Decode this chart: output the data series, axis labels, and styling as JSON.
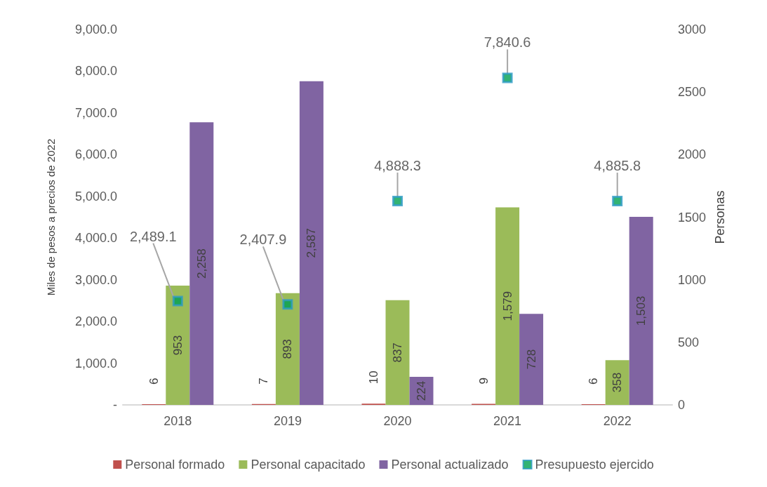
{
  "chart_data": {
    "type": "bar",
    "categories": [
      "2018",
      "2019",
      "2020",
      "2021",
      "2022"
    ],
    "ylabel": "Miles de pesos a precios de 2022",
    "y2label": "Personas",
    "ylim": [
      0,
      9000
    ],
    "yticks": [
      {
        "value": 0,
        "label": "-"
      },
      {
        "value": 1000,
        "label": "1,000.0"
      },
      {
        "value": 2000,
        "label": "2,000.0"
      },
      {
        "value": 3000,
        "label": "3,000.0"
      },
      {
        "value": 4000,
        "label": "4,000.0"
      },
      {
        "value": 5000,
        "label": "5,000.0"
      },
      {
        "value": 6000,
        "label": "6,000.0"
      },
      {
        "value": 7000,
        "label": "7,000.0"
      },
      {
        "value": 8000,
        "label": "8,000.0"
      },
      {
        "value": 9000,
        "label": "9,000.0"
      }
    ],
    "y2lim": [
      0,
      3000
    ],
    "y2ticks": [
      0,
      500,
      1000,
      1500,
      2000,
      2500,
      3000
    ],
    "grid": false,
    "legend": "bottom",
    "series": [
      {
        "name": "Personal formado",
        "color": "#c0504d",
        "axis": "y2",
        "values": [
          6,
          7,
          10,
          9,
          6
        ],
        "value_labels": [
          "6",
          "7",
          "10",
          "9",
          "6"
        ]
      },
      {
        "name": "Personal capacitado",
        "color": "#9bbb59",
        "axis": "y2",
        "values": [
          953,
          893,
          837,
          1579,
          358
        ],
        "value_labels": [
          "953",
          "893",
          "837",
          "1,579",
          "358"
        ]
      },
      {
        "name": "Personal actualizado",
        "color": "#8064a2",
        "axis": "y2",
        "values": [
          2258,
          2587,
          224,
          728,
          1503
        ],
        "value_labels": [
          "2,258",
          "2,587",
          "224",
          "728",
          "1,503"
        ]
      },
      {
        "name": "Presupuesto ejercido",
        "type": "scatter",
        "marker": "square",
        "color": "#2e9bc6",
        "values": [
          2489.1,
          2407.9,
          4888.3,
          7840.6,
          4885.8
        ],
        "value_labels": [
          "2,489.1",
          "2,407.9",
          "4,888.3",
          "7,840.6",
          "4,885.8"
        ]
      }
    ]
  }
}
